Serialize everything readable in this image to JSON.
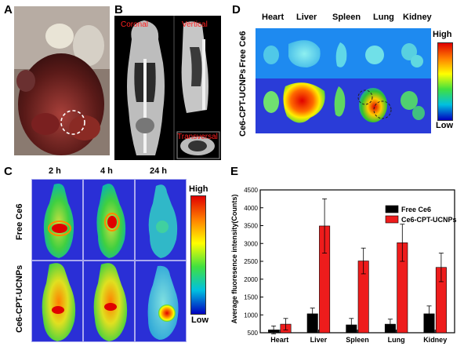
{
  "panels": {
    "a": "A",
    "b": "B",
    "c": "C",
    "d": "D",
    "e": "E"
  },
  "panel_b": {
    "coronal": "Coronal",
    "vertical": "Vertical",
    "transversal": "Transversal"
  },
  "panel_c": {
    "times": [
      "2 h",
      "4 h",
      "24 h"
    ],
    "rows": [
      "Free Ce6",
      "Ce6-CPT-UCNPs"
    ],
    "colorbar": {
      "high": "High",
      "low": "Low"
    }
  },
  "panel_d": {
    "organs": [
      "Heart",
      "Liver",
      "Spleen",
      "Lung",
      "Kidney"
    ],
    "rows": [
      "Free Ce6",
      "Ce6-CPT-UCNPs"
    ],
    "colorbar": {
      "high": "High",
      "low": "Low"
    }
  },
  "colors": {
    "free_ce6": "#000000",
    "ucnps": "#ee1c1c",
    "heat_bg": "#2a2fd6"
  },
  "chart_data": {
    "type": "bar",
    "categories": [
      "Heart",
      "Liver",
      "Spleen",
      "Lung",
      "Kidney"
    ],
    "series": [
      {
        "name": "Free Ce6",
        "values": [
          580,
          1030,
          720,
          740,
          1030
        ],
        "errors": [
          110,
          160,
          180,
          140,
          220
        ]
      },
      {
        "name": "Ce6-CPT-UCNPs",
        "values": [
          740,
          3490,
          2510,
          3020,
          2330
        ],
        "errors": [
          160,
          760,
          360,
          520,
          400
        ]
      }
    ],
    "ylabel": "Average fluoresence intensity(Counts)",
    "ylim": [
      500,
      4500
    ],
    "yticks": [
      500,
      1000,
      1500,
      2000,
      2500,
      3000,
      3500,
      4000,
      4500
    ],
    "legend": "top-right"
  }
}
